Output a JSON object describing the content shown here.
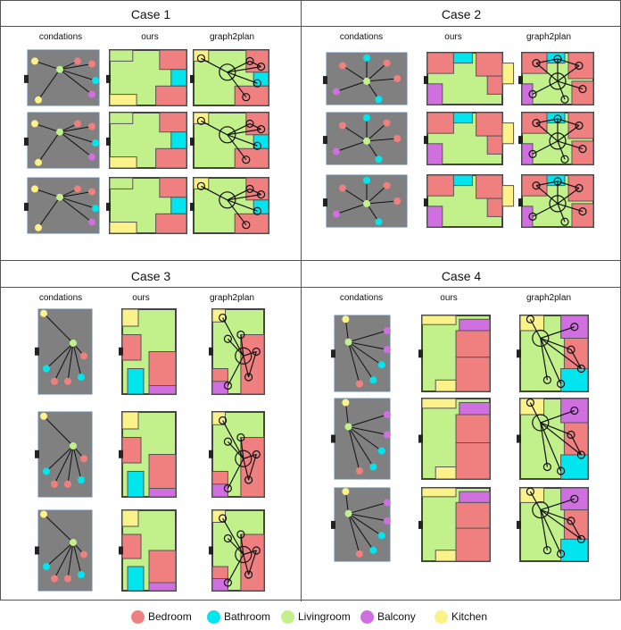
{
  "cases": [
    {
      "title": "Case 1"
    },
    {
      "title": "Case 2"
    },
    {
      "title": "Case 3"
    },
    {
      "title": "Case 4"
    }
  ],
  "column_headers": {
    "condations": "condations",
    "ours": "ours",
    "graph2plan": "graph2plan"
  },
  "legend": [
    {
      "label": "Bedroom",
      "color": "#f08080"
    },
    {
      "label": "Bathroom",
      "color": "#00e5ee"
    },
    {
      "label": "Livingroom",
      "color": "#c2f08a"
    },
    {
      "label": "Balcony",
      "color": "#cf6fe0"
    },
    {
      "label": "Kitchen",
      "color": "#fbf38a"
    }
  ],
  "colors": {
    "boundary": "#808080",
    "door": "#222222",
    "wall": "#444444"
  }
}
